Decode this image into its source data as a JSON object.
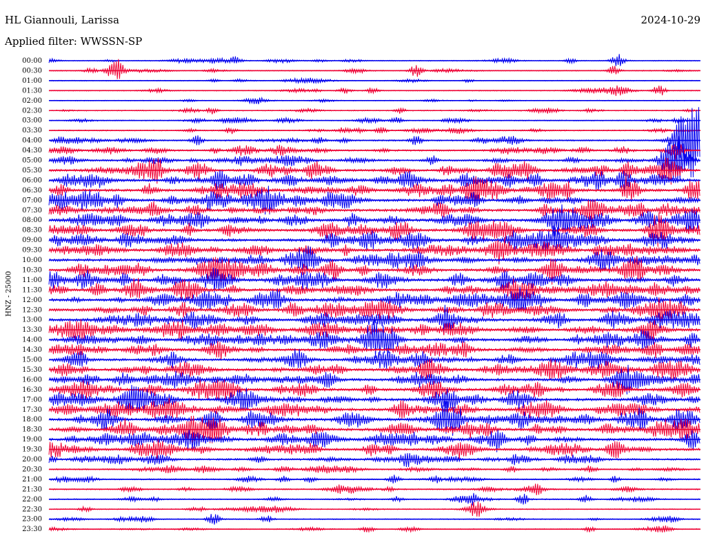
{
  "header": {
    "station": "HL Giannouli, Larissa",
    "date": "2024-10-29",
    "filter_label": "Applied filter: WWSSN-SP"
  },
  "channel_label": "HNZ - 25000",
  "colors": {
    "even_line": "#0000ee",
    "odd_line": "#ee0033",
    "background": "#ffffff",
    "text": "#000000"
  },
  "chart_data": {
    "type": "helicorder",
    "row_labels": [
      "00:00",
      "00:30",
      "01:00",
      "01:30",
      "02:00",
      "02:30",
      "03:00",
      "03:30",
      "04:00",
      "04:30",
      "05:00",
      "05:30",
      "06:00",
      "06:30",
      "07:00",
      "07:30",
      "08:00",
      "08:30",
      "09:00",
      "09:30",
      "10:00",
      "10:30",
      "11:00",
      "11:30",
      "12:00",
      "12:30",
      "13:00",
      "13:30",
      "14:00",
      "14:30",
      "15:00",
      "15:30",
      "16:00",
      "16:30",
      "17:00",
      "17:30",
      "18:00",
      "18:30",
      "19:00",
      "19:30",
      "20:00",
      "20:30",
      "21:00",
      "21:30",
      "22:00",
      "22:30",
      "23:00",
      "23:30"
    ],
    "row_activity": [
      0.15,
      0.15,
      0.12,
      0.15,
      0.12,
      0.2,
      0.2,
      0.25,
      0.35,
      0.45,
      0.55,
      0.75,
      0.95,
      0.9,
      0.9,
      0.9,
      0.95,
      0.95,
      0.95,
      0.9,
      0.95,
      0.95,
      0.95,
      0.95,
      0.95,
      0.95,
      0.95,
      0.95,
      0.9,
      0.85,
      0.8,
      0.9,
      0.9,
      0.9,
      0.95,
      0.95,
      0.95,
      0.95,
      0.9,
      0.8,
      0.55,
      0.35,
      0.3,
      0.3,
      0.25,
      0.2,
      0.2,
      0.15
    ],
    "events": [
      {
        "row": 0,
        "minute": 8.6,
        "amplitude": 5
      },
      {
        "row": 0,
        "minute": 24.0,
        "amplitude": 4
      },
      {
        "row": 0,
        "minute": 26.2,
        "amplitude": 10
      },
      {
        "row": 1,
        "minute": 3.1,
        "amplitude": 18
      },
      {
        "row": 1,
        "minute": 16.9,
        "amplitude": 9
      },
      {
        "row": 1,
        "minute": 26.0,
        "amplitude": 7
      },
      {
        "row": 2,
        "minute": 7.6,
        "amplitude": 3
      },
      {
        "row": 3,
        "minute": 14.9,
        "amplitude": 5
      },
      {
        "row": 3,
        "minute": 28.1,
        "amplitude": 8
      },
      {
        "row": 5,
        "minute": 7.5,
        "amplitude": 5
      },
      {
        "row": 5,
        "minute": 16.2,
        "amplitude": 4
      },
      {
        "row": 6,
        "minute": 16.0,
        "amplitude": 5
      },
      {
        "row": 7,
        "minute": 8.4,
        "amplitude": 5
      },
      {
        "row": 7,
        "minute": 15.3,
        "amplitude": 5
      },
      {
        "row": 8,
        "minute": 6.8,
        "amplitude": 7
      },
      {
        "row": 8,
        "minute": 16.9,
        "amplitude": 7
      },
      {
        "row": 8,
        "minute": 29.6,
        "amplitude": 52
      },
      {
        "row": 9,
        "minute": 28.9,
        "amplitude": 12
      },
      {
        "row": 10,
        "minute": 28.8,
        "amplitude": 36
      },
      {
        "row": 11,
        "minute": 28.6,
        "amplitude": 22
      },
      {
        "row": 11,
        "minute": 26.7,
        "amplitude": 12
      },
      {
        "row": 11,
        "minute": 5.0,
        "amplitude": 9
      },
      {
        "row": 11,
        "minute": 10.2,
        "amplitude": 9
      },
      {
        "row": 12,
        "minute": 26.5,
        "amplitude": 12
      },
      {
        "row": 12,
        "minute": 21.2,
        "amplitude": 10
      },
      {
        "row": 13,
        "minute": 26.8,
        "amplitude": 16
      },
      {
        "row": 13,
        "minute": 19.6,
        "amplitude": 12
      },
      {
        "row": 14,
        "minute": 12.9,
        "amplitude": 10
      },
      {
        "row": 14,
        "minute": 19.6,
        "amplitude": 10
      },
      {
        "row": 16,
        "minute": 29.6,
        "amplitude": 12
      },
      {
        "row": 18,
        "minute": 13.0,
        "amplitude": 10
      },
      {
        "row": 21,
        "minute": 23.2,
        "amplitude": 14
      },
      {
        "row": 22,
        "minute": 21.0,
        "amplitude": 14
      },
      {
        "row": 24,
        "minute": 24.6,
        "amplitude": 12
      },
      {
        "row": 28,
        "minute": 15.6,
        "amplitude": 14
      },
      {
        "row": 28,
        "minute": 29.6,
        "amplitude": 10
      },
      {
        "row": 30,
        "minute": 1.5,
        "amplitude": 10
      },
      {
        "row": 36,
        "minute": 7.6,
        "amplitude": 12
      },
      {
        "row": 38,
        "minute": 29.6,
        "amplitude": 10
      },
      {
        "row": 40,
        "minute": 16.4,
        "amplitude": 6
      },
      {
        "row": 41,
        "minute": 21.3,
        "amplitude": 5
      },
      {
        "row": 42,
        "minute": 15.9,
        "amplitude": 6
      },
      {
        "row": 42,
        "minute": 12.0,
        "amplitude": 5
      },
      {
        "row": 43,
        "minute": 22.4,
        "amplitude": 8
      },
      {
        "row": 44,
        "minute": 19.5,
        "amplitude": 6
      },
      {
        "row": 44,
        "minute": 21.8,
        "amplitude": 8
      },
      {
        "row": 44,
        "minute": 24.7,
        "amplitude": 6
      },
      {
        "row": 45,
        "minute": 19.7,
        "amplitude": 8
      },
      {
        "row": 46,
        "minute": 7.6,
        "amplitude": 9
      },
      {
        "row": 46,
        "minute": 9.9,
        "amplitude": 3
      },
      {
        "row": 47,
        "minute": 14.7,
        "amplitude": 4
      },
      {
        "row": 47,
        "minute": 24.9,
        "amplitude": 4
      }
    ],
    "minutes_per_row": 30
  }
}
